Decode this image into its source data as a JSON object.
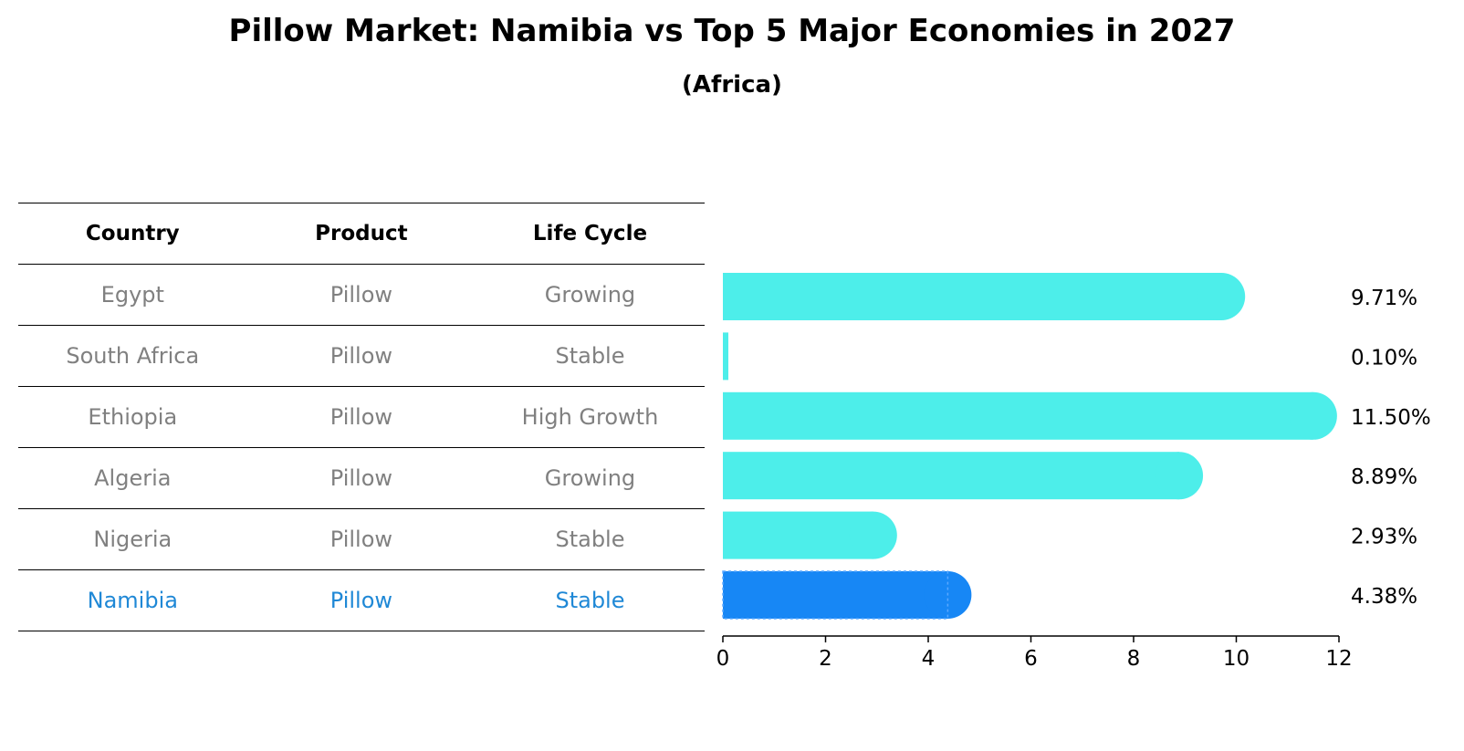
{
  "title": "Pillow Market: Namibia vs Top 5 Major Economies in 2027",
  "subtitle": "(Africa)",
  "table": {
    "headers": [
      "Country",
      "Product",
      "Life Cycle"
    ],
    "rows": [
      [
        "Egypt",
        "Pillow",
        "Growing"
      ],
      [
        "South Africa",
        "Pillow",
        "Stable"
      ],
      [
        "Ethiopia",
        "Pillow",
        "High Growth"
      ],
      [
        "Algeria",
        "Pillow",
        "Growing"
      ],
      [
        "Nigeria",
        "Pillow",
        "Stable"
      ],
      [
        "Namibia",
        "Pillow",
        "Stable"
      ]
    ]
  },
  "colors": {
    "bar": "#4deeea",
    "highlight": "#1787f5",
    "highlight_text": "#1f88d6"
  },
  "chart_data": {
    "type": "bar",
    "orientation": "horizontal",
    "categories": [
      "Egypt",
      "South Africa",
      "Ethiopia",
      "Algeria",
      "Nigeria",
      "Namibia"
    ],
    "values": [
      9.71,
      0.1,
      11.5,
      8.89,
      2.93,
      4.38
    ],
    "labels": [
      "9.71%",
      "0.10%",
      "11.50%",
      "8.89%",
      "2.93%",
      "4.38%"
    ],
    "highlight": "Namibia",
    "xlim": [
      0,
      12
    ],
    "xticks": [
      "0",
      "2",
      "4",
      "6",
      "8",
      "10",
      "12"
    ]
  }
}
